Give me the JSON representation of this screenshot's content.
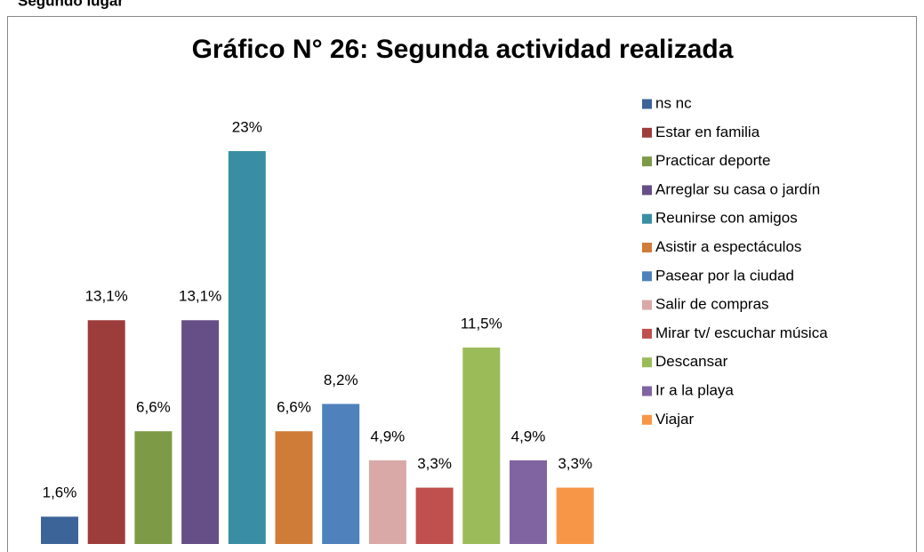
{
  "caption": "Segundo lugar",
  "chart_data": {
    "type": "bar",
    "title": "Gráfico N° 26: Segunda actividad realizada",
    "categories": [
      "ns nc",
      "Estar en familia",
      "Practicar deporte",
      "Arreglar su casa o jardín",
      "Reunirse con amigos",
      "Asistir a espectáculos",
      "Pasear por la ciudad",
      "Salir de compras",
      "Mirar tv/ escuchar música",
      "Descansar",
      "Ir a la playa",
      "Viajar"
    ],
    "values": [
      1.6,
      13.1,
      6.6,
      13.1,
      23,
      6.6,
      8.2,
      4.9,
      3.3,
      11.5,
      4.9,
      3.3
    ],
    "value_labels": [
      "1,6%",
      "13,1%",
      "6,6%",
      "13,1%",
      "23%",
      "6,6%",
      "8,2%",
      "4,9%",
      "3,3%",
      "11,5%",
      "4,9%",
      "3,3%"
    ],
    "colors": [
      "#3d6499",
      "#9c3d3b",
      "#7d9a47",
      "#664f86",
      "#3a8ea4",
      "#cf7c38",
      "#4f81bd",
      "#d9a9a8",
      "#c0504d",
      "#9bbb59",
      "#8064a2",
      "#f79646"
    ]
  }
}
